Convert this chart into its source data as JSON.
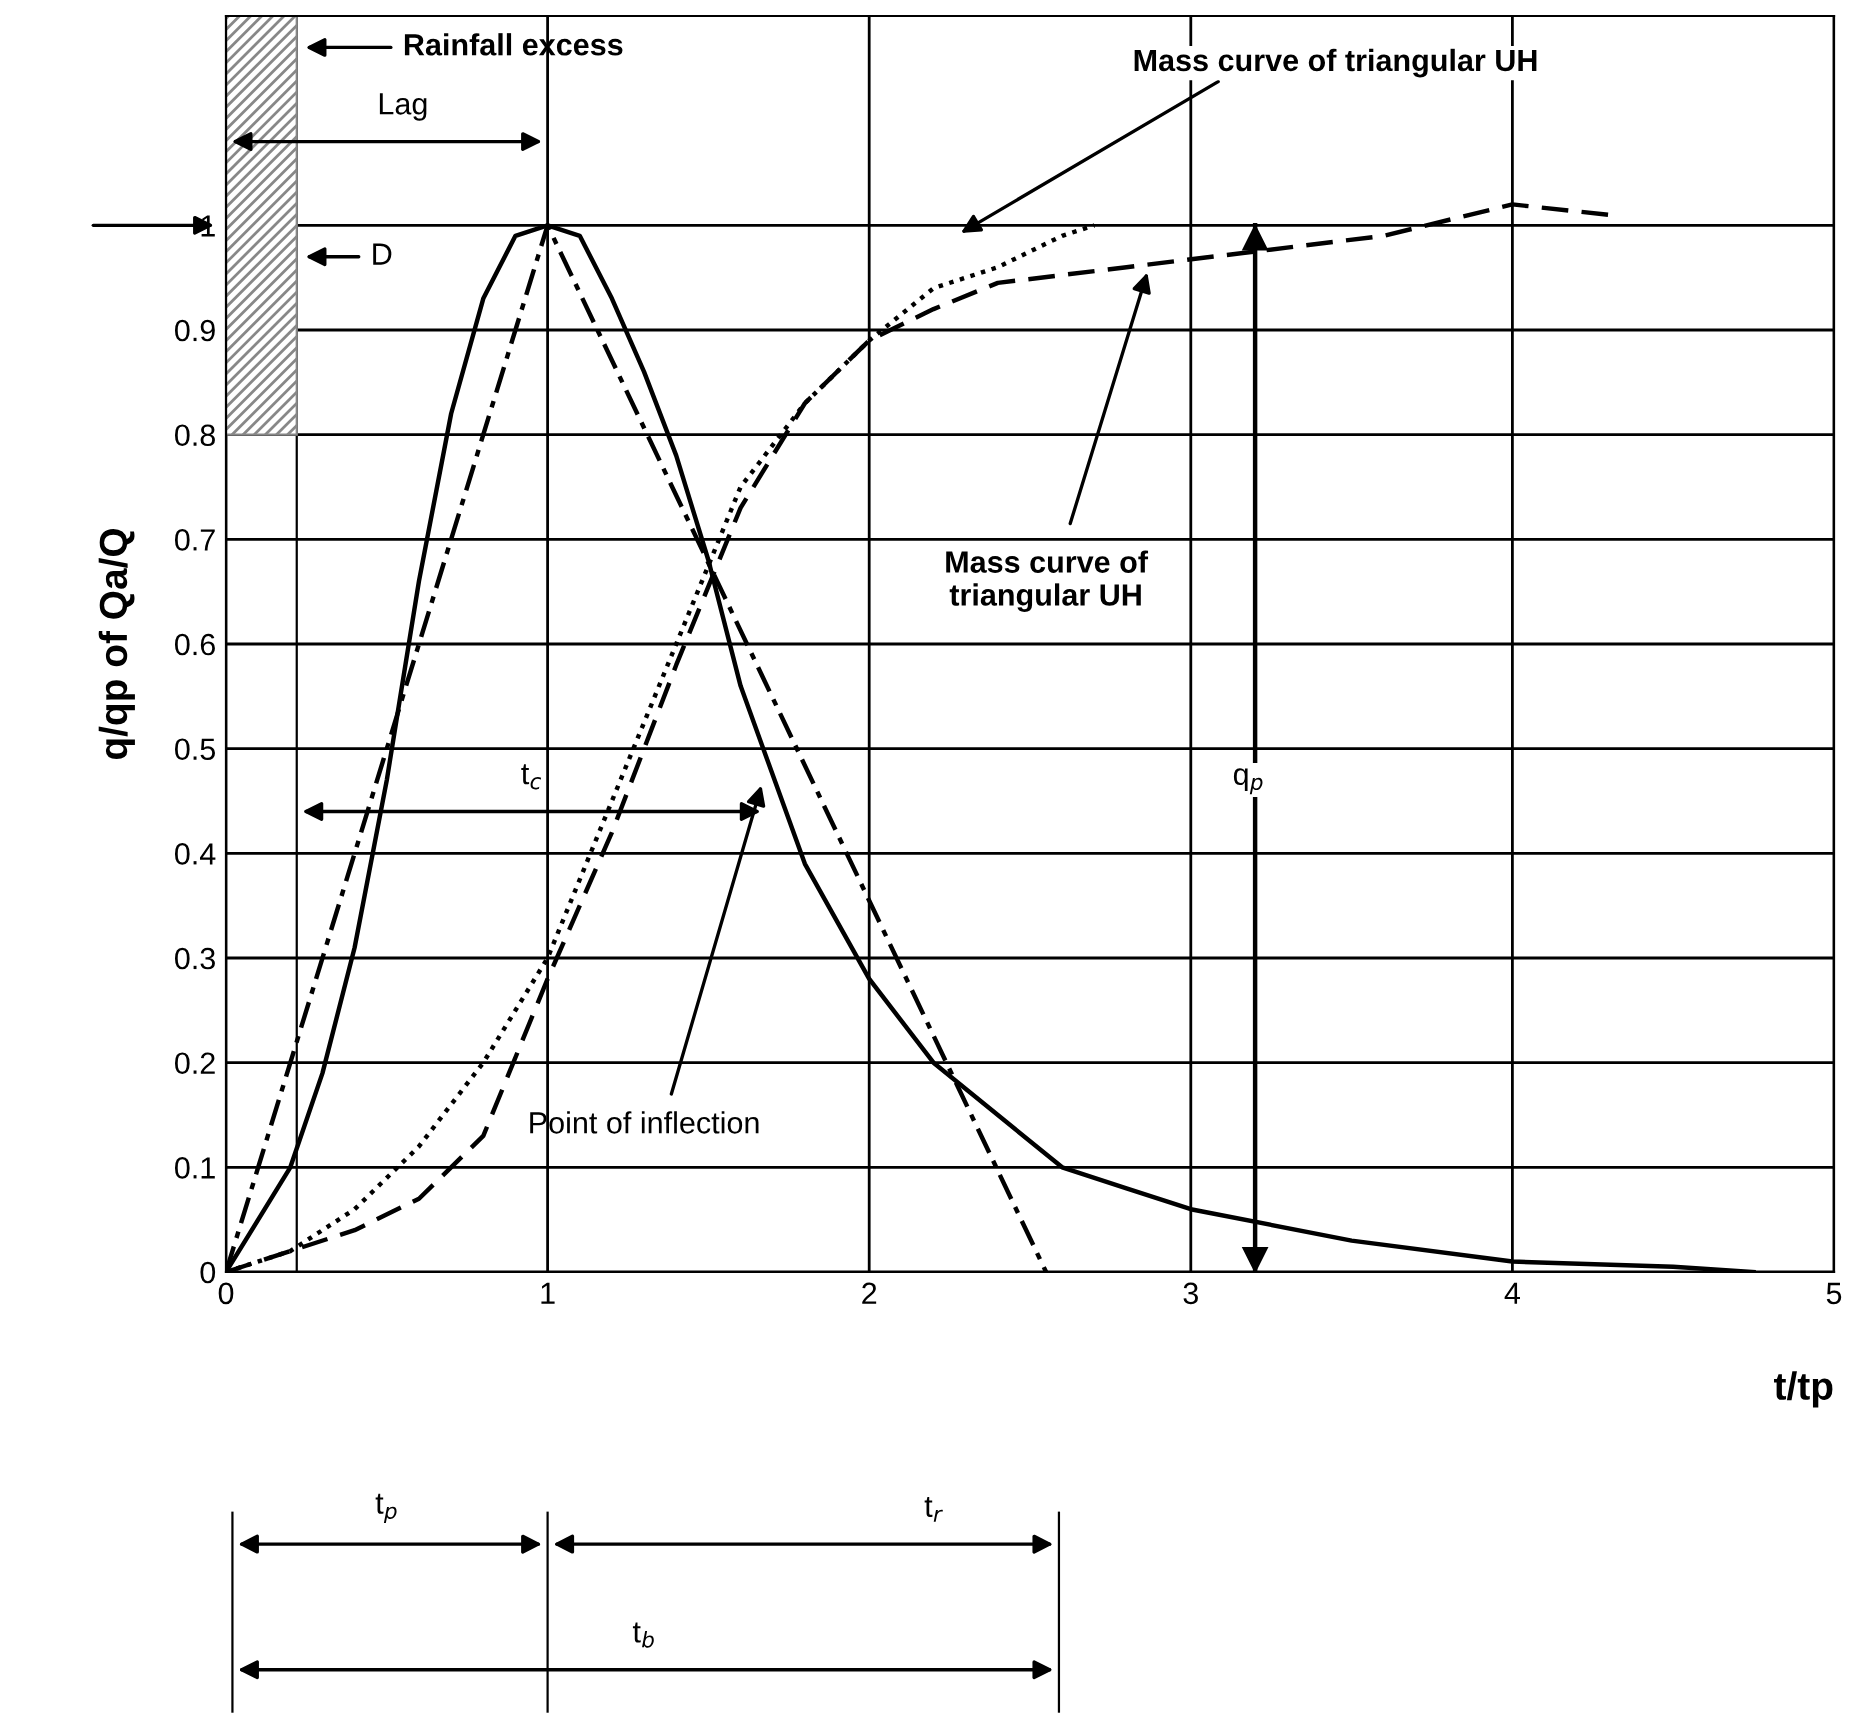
{
  "chart_data": {
    "type": "line",
    "xlabel": "t/tp",
    "ylabel": "q/qp of Qa/Q",
    "xlim": [
      0,
      5
    ],
    "ylim": [
      0,
      1.2
    ],
    "xticks": [
      0,
      1,
      2,
      3,
      4,
      5
    ],
    "yticks": [
      0,
      0.1,
      0.2,
      0.3,
      0.4,
      0.5,
      0.6,
      0.7,
      0.8,
      0.9,
      1
    ],
    "grid": true,
    "legend": false,
    "marker": "none",
    "series": [
      {
        "color": "#000000",
        "line_style": "solid",
        "x": [
          0,
          0.2,
          0.3,
          0.4,
          0.5,
          0.6,
          0.7,
          0.8,
          0.9,
          1.0,
          1.1,
          1.2,
          1.3,
          1.4,
          1.5,
          1.6,
          1.8,
          2.0,
          2.2,
          2.4,
          2.6,
          2.8,
          3.0,
          3.5,
          4.0,
          4.5,
          4.75
        ],
        "values": [
          0,
          0.1,
          0.19,
          0.31,
          0.47,
          0.66,
          0.82,
          0.93,
          0.99,
          1.0,
          0.99,
          0.93,
          0.86,
          0.78,
          0.68,
          0.56,
          0.39,
          0.28,
          0.2,
          0.15,
          0.1,
          0.08,
          0.06,
          0.03,
          0.01,
          0.005,
          0
        ]
      },
      {
        "color": "#000000",
        "line_style": "dashdot",
        "x": [
          0,
          1.0,
          2.55
        ],
        "values": [
          0,
          1.0,
          0
        ]
      },
      {
        "color": "#000000",
        "line_style": "dotted",
        "x": [
          0,
          0.2,
          0.4,
          0.6,
          0.8,
          1.0,
          1.2,
          1.4,
          1.6,
          1.8,
          2.0,
          2.2,
          2.4,
          2.6,
          2.7
        ],
        "values": [
          0,
          0.02,
          0.06,
          0.12,
          0.2,
          0.3,
          0.45,
          0.6,
          0.75,
          0.83,
          0.89,
          0.94,
          0.96,
          0.99,
          1.0
        ]
      },
      {
        "color": "#000000",
        "line_style": "solid",
        "x": [
          3.2,
          3.2
        ],
        "values": [
          0,
          1
        ]
      },
      {
        "color": "#000000",
        "line_style": "dashed",
        "x": [
          0,
          0.4,
          0.6,
          0.8,
          1.0,
          1.2,
          1.4,
          1.6,
          1.8,
          2.0,
          2.2,
          2.4,
          2.8,
          3.2,
          3.6,
          4.0,
          4.3
        ],
        "values": [
          0,
          0.04,
          0.07,
          0.13,
          0.28,
          0.42,
          0.58,
          0.73,
          0.83,
          0.89,
          0.92,
          0.945,
          0.96,
          0.975,
          0.99,
          1.02,
          1.01
        ]
      }
    ],
    "ref_lines": [
      {
        "axis": "x",
        "value": 0.22
      }
    ],
    "annotations": [
      "Rainfall excess",
      "Lag",
      "D",
      "t$_{c}$",
      "q$_{p}$",
      "Point of inflection",
      "Mass curve of triangular UH",
      "Mass curve of\ntriangular UH",
      "t$_{p}$",
      "t$_{r}$",
      "t$_{b}$"
    ]
  }
}
